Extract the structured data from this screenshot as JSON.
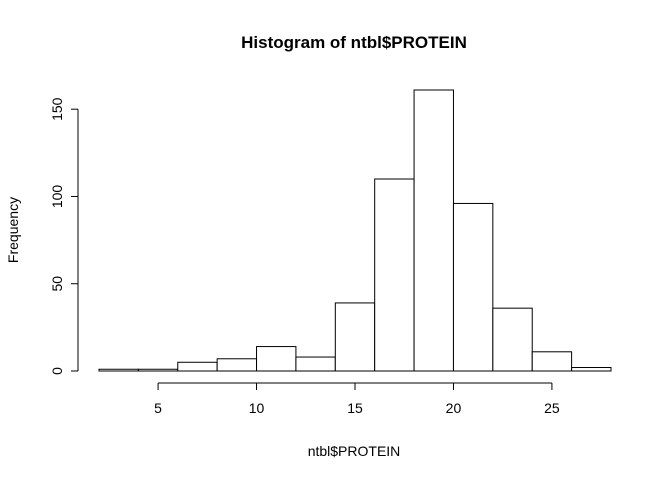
{
  "chart_data": {
    "type": "bar",
    "title": "Histogram of ntbl$PROTEIN",
    "xlabel": "ntbl$PROTEIN",
    "ylabel": "Frequency",
    "bins": [
      {
        "start": 2,
        "end": 4,
        "count": 1
      },
      {
        "start": 4,
        "end": 6,
        "count": 1
      },
      {
        "start": 6,
        "end": 8,
        "count": 5
      },
      {
        "start": 8,
        "end": 10,
        "count": 7
      },
      {
        "start": 10,
        "end": 12,
        "count": 14
      },
      {
        "start": 12,
        "end": 14,
        "count": 8
      },
      {
        "start": 14,
        "end": 16,
        "count": 39
      },
      {
        "start": 16,
        "end": 18,
        "count": 110
      },
      {
        "start": 18,
        "end": 20,
        "count": 161
      },
      {
        "start": 20,
        "end": 22,
        "count": 96
      },
      {
        "start": 22,
        "end": 24,
        "count": 36
      },
      {
        "start": 24,
        "end": 26,
        "count": 11
      },
      {
        "start": 26,
        "end": 28,
        "count": 2
      }
    ],
    "x_ticks": [
      5,
      10,
      15,
      20,
      25
    ],
    "y_ticks": [
      0,
      50,
      100,
      150
    ],
    "xlim": [
      2,
      28
    ],
    "ylim": [
      0,
      161
    ],
    "grid": false,
    "legend": "none",
    "bar_fill": "#ffffff",
    "bar_stroke": "#000000"
  }
}
